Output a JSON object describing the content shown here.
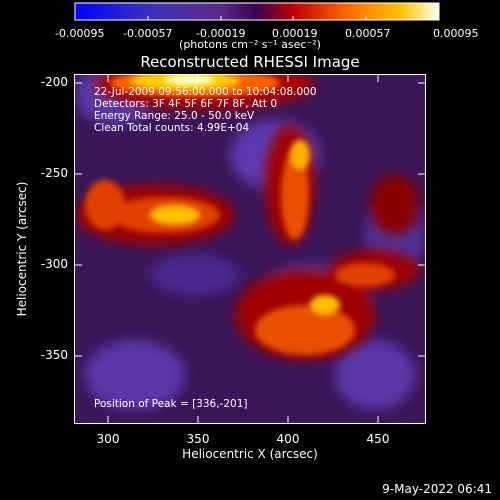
{
  "colorbar": {
    "tick_labels": [
      "-0.00095",
      "-0.00057",
      "-0.00019",
      "0.00019",
      "0.00057",
      "0.00095"
    ],
    "units": "(photons cm⁻² s⁻¹ asec⁻²)"
  },
  "title": "Reconstructed RHESSI Image",
  "info_lines": [
    "22-Jul-2009 09:56:00.000 to 10:04:08.000",
    "Detectors: 3F 4F 5F 6F 7F 8F, Att 0",
    "Energy Range: 25.0 - 50.0 keV",
    "Clean    Total counts: 4.99E+04"
  ],
  "peak_text": "Position of Peak = [336,-201]",
  "x_axis": {
    "label": "Heliocentric X (arcsec)",
    "ticks": [
      "300",
      "350",
      "400",
      "450"
    ]
  },
  "y_axis": {
    "label": "Heliocentric Y (arcsec)",
    "ticks": [
      "-200",
      "-250",
      "-300",
      "-350"
    ]
  },
  "timestamp": "9-May-2022 06:41"
}
